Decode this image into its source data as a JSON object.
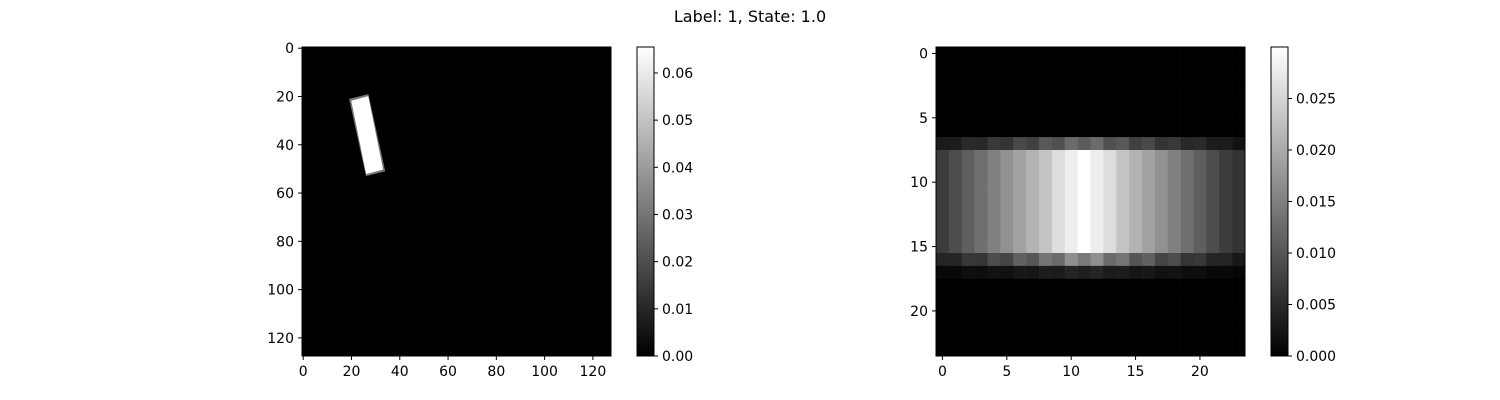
{
  "figure": {
    "title": "Label: 1, State: 1.0"
  },
  "chart_data": [
    {
      "type": "heatmap",
      "colormap": "gray",
      "image_size": [
        128,
        128
      ],
      "xlim": [
        -0.5,
        127.5
      ],
      "ylim": [
        127.5,
        -0.5
      ],
      "x_ticks": [
        0,
        20,
        40,
        60,
        80,
        100,
        120
      ],
      "y_ticks": [
        0,
        20,
        40,
        60,
        80,
        100,
        120
      ],
      "value_range": [
        0,
        0.0655
      ],
      "colorbar_ticks": [
        "0.00",
        "0.01",
        "0.02",
        "0.03",
        "0.04",
        "0.05",
        "0.06"
      ],
      "colorbar_tick_values": [
        0,
        0.01,
        0.02,
        0.03,
        0.04,
        0.05,
        0.06
      ],
      "shape": {
        "description": "tilted bright rectangle",
        "corners": [
          [
            19,
            21
          ],
          [
            27,
            19
          ],
          [
            34,
            51
          ],
          [
            26,
            53
          ]
        ],
        "value": 0.0655,
        "edge_value": 0.03
      }
    },
    {
      "type": "heatmap",
      "colormap": "gray",
      "image_size": [
        24,
        24
      ],
      "xlim": [
        -0.5,
        23.5
      ],
      "ylim": [
        23.5,
        -0.5
      ],
      "x_ticks": [
        0,
        5,
        10,
        15,
        20
      ],
      "y_ticks": [
        0,
        5,
        10,
        15,
        20
      ],
      "value_range": [
        0,
        0.03
      ],
      "colorbar_ticks": [
        "0.000",
        "0.005",
        "0.010",
        "0.015",
        "0.020",
        "0.025"
      ],
      "colorbar_tick_values": [
        0,
        0.005,
        0.01,
        0.015,
        0.02,
        0.025
      ],
      "band": {
        "start_row": 7,
        "end_row": 17,
        "peak_column": 11,
        "peak_value": 0.03,
        "column_profile": [
          0.007,
          0.009,
          0.011,
          0.013,
          0.015,
          0.017,
          0.019,
          0.021,
          0.023,
          0.026,
          0.028,
          0.03,
          0.028,
          0.026,
          0.023,
          0.021,
          0.019,
          0.017,
          0.015,
          0.013,
          0.011,
          0.009,
          0.007,
          0.006
        ],
        "edge_rows": [
          7,
          16,
          17
        ],
        "edge_factor": [
          0.45,
          0.6,
          0.15
        ]
      }
    }
  ]
}
